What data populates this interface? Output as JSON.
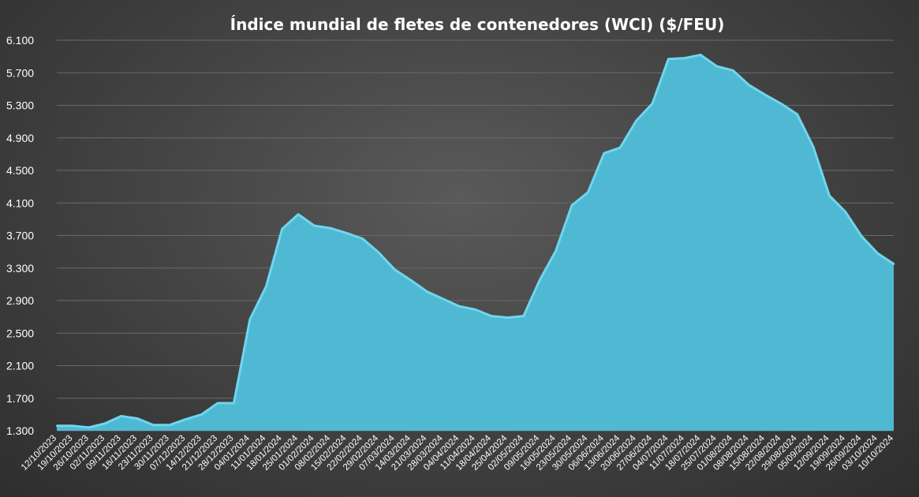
{
  "chart_data": {
    "type": "area",
    "title": "Índice mundial de fletes de contenedores (WCI) ($/FEU)",
    "xlabel": "",
    "ylabel": "",
    "ylim": [
      1300,
      6100
    ],
    "yticks": [
      "1.300",
      "1.700",
      "2.100",
      "2.500",
      "2.900",
      "3.300",
      "3.700",
      "4.100",
      "4.500",
      "4.900",
      "5.300",
      "5.700",
      "6.100"
    ],
    "ytick_values": [
      1300,
      1700,
      2100,
      2500,
      2900,
      3300,
      3700,
      4100,
      4500,
      4900,
      5300,
      5700,
      6100
    ],
    "x": [
      "12/10/2023",
      "19/10/2023",
      "26/10/2023",
      "02/11/2023",
      "09/11/2023",
      "16/11/2023",
      "23/11/2023",
      "30/11/2023",
      "07/12/2023",
      "14/12/2023",
      "21/12/2023",
      "28/12/2023",
      "04/01/2024",
      "11/01/2024",
      "18/01/2024",
      "25/01/2024",
      "01/02/2024",
      "08/02/2024",
      "15/02/2024",
      "22/02/2024",
      "29/02/2024",
      "07/03/2024",
      "14/03/2024",
      "21/03/2024",
      "28/03/2024",
      "04/04/2024",
      "11/04/2024",
      "18/04/2024",
      "25/04/2024",
      "02/05/2024",
      "09/05/2024",
      "16/05/2024",
      "23/05/2024",
      "30/05/2024",
      "06/06/2024",
      "13/06/2024",
      "20/06/2024",
      "27/06/2024",
      "04/07/2024",
      "11/07/2024",
      "18/07/2024",
      "25/07/2024",
      "01/08/2024",
      "08/08/2024",
      "15/08/2024",
      "22/08/2024",
      "29/08/2024",
      "05/09/2024",
      "12/09/2024",
      "19/09/2024",
      "26/09/2024",
      "03/10/2024",
      "10/10/2024"
    ],
    "series": [
      {
        "name": "",
        "values": [
          1360,
          1360,
          1340,
          1390,
          1480,
          1450,
          1370,
          1370,
          1440,
          1500,
          1640,
          1640,
          2670,
          3070,
          3780,
          3960,
          3820,
          3790,
          3730,
          3660,
          3490,
          3280,
          3150,
          3010,
          2920,
          2830,
          2790,
          2710,
          2690,
          2710,
          3150,
          3510,
          4070,
          4230,
          4710,
          4780,
          5110,
          5320,
          5870,
          5880,
          5920,
          5780,
          5730,
          5550,
          5430,
          5320,
          5190,
          4790,
          4190,
          3990,
          3690,
          3480,
          3350
        ]
      }
    ],
    "legend": "none",
    "grid": true,
    "fill_color": "#4fb8d3",
    "line_color": "#6fd6ee",
    "background_color": "#444444"
  }
}
